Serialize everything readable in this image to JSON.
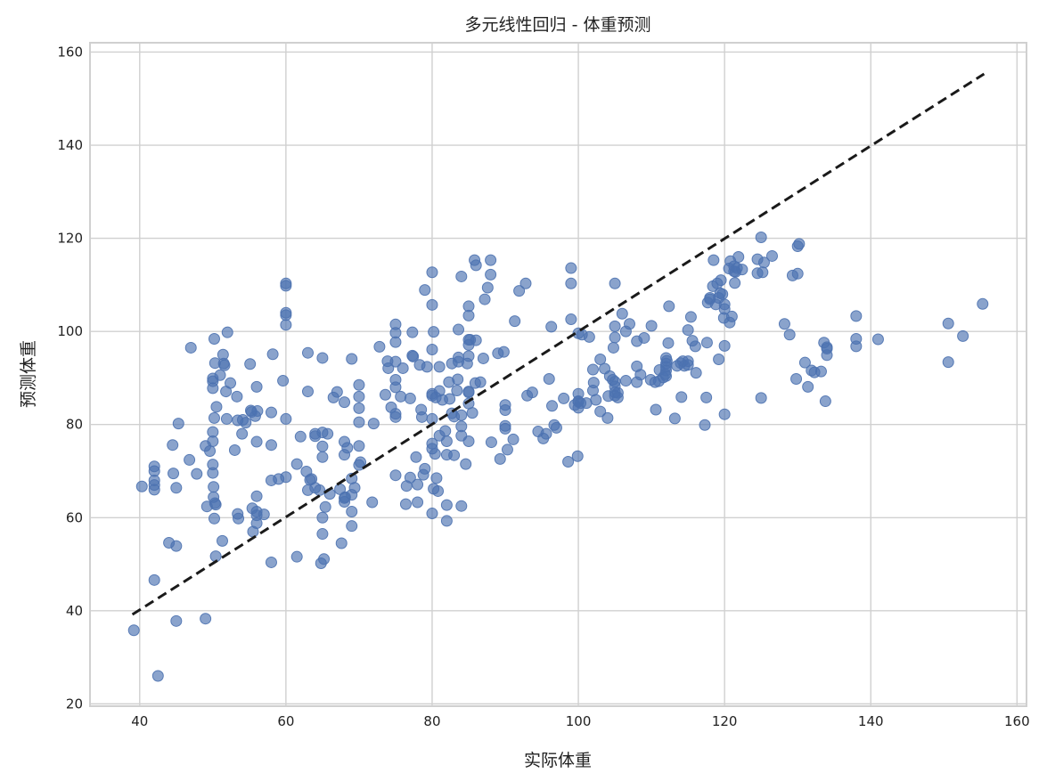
{
  "chart_data": {
    "type": "scatter",
    "title": "多元线性回归 - 体重预测",
    "xlabel": "实际体重",
    "ylabel": "预测体重",
    "xlim": [
      33.2,
      161.3
    ],
    "ylim": [
      19.5,
      162
    ],
    "xticks": [
      40,
      60,
      80,
      100,
      120,
      140,
      160
    ],
    "yticks": [
      20,
      40,
      60,
      80,
      100,
      120,
      140,
      160
    ],
    "grid": true,
    "reference_line": {
      "style": "dashed",
      "color": "#1a1a1a",
      "x": [
        39,
        155.5
      ],
      "y": [
        39.2,
        155.3
      ]
    },
    "point_color": "#4c72b0",
    "points": [
      [
        39.2,
        35.8
      ],
      [
        40.3,
        66.7
      ],
      [
        42,
        46.6
      ],
      [
        42,
        66
      ],
      [
        42,
        67
      ],
      [
        42,
        68
      ],
      [
        42,
        70
      ],
      [
        42,
        71
      ],
      [
        42.5,
        26
      ],
      [
        44,
        54.6
      ],
      [
        44.5,
        75.6
      ],
      [
        44.6,
        69.5
      ],
      [
        45,
        53.9
      ],
      [
        45,
        66.4
      ],
      [
        45,
        37.8
      ],
      [
        45.3,
        80.2
      ],
      [
        46.8,
        72.4
      ],
      [
        47,
        96.5
      ],
      [
        47.8,
        69.4
      ],
      [
        49,
        38.3
      ],
      [
        49,
        75.4
      ],
      [
        49.2,
        62.4
      ],
      [
        49.6,
        74.3
      ],
      [
        50,
        78.4
      ],
      [
        50,
        87.8
      ],
      [
        50,
        89.3
      ],
      [
        50,
        89.9
      ],
      [
        50,
        76.4
      ],
      [
        50.2,
        98.4
      ],
      [
        50,
        71.4
      ],
      [
        50,
        69.6
      ],
      [
        50.1,
        66.6
      ],
      [
        50.1,
        64.4
      ],
      [
        50.3,
        63.1
      ],
      [
        50.2,
        59.8
      ],
      [
        50.4,
        62.8
      ],
      [
        50.4,
        51.7
      ],
      [
        50.2,
        81.4
      ],
      [
        50.3,
        93.2
      ],
      [
        50.5,
        83.8
      ],
      [
        51,
        90.6
      ],
      [
        51.3,
        55
      ],
      [
        51.4,
        95
      ],
      [
        51.5,
        93.1
      ],
      [
        51.6,
        92.7
      ],
      [
        51.8,
        87.1
      ],
      [
        51.9,
        81.2
      ],
      [
        52,
        99.8
      ],
      [
        52.4,
        88.9
      ],
      [
        53,
        74.5
      ],
      [
        53.3,
        86
      ],
      [
        53.4,
        80.9
      ],
      [
        53.4,
        60.8
      ],
      [
        53.5,
        59.8
      ],
      [
        54,
        78
      ],
      [
        54.1,
        81
      ],
      [
        54.5,
        80.4
      ],
      [
        55.1,
        93
      ],
      [
        55.2,
        83
      ],
      [
        55.3,
        82.7
      ],
      [
        55.4,
        62
      ],
      [
        55.5,
        57
      ],
      [
        55.8,
        81.8
      ],
      [
        56,
        88.1
      ],
      [
        56,
        76.3
      ],
      [
        56,
        61.3
      ],
      [
        56,
        60.5
      ],
      [
        56,
        58.8
      ],
      [
        56,
        64.6
      ],
      [
        56.1,
        82.9
      ],
      [
        57,
        60.7
      ],
      [
        58,
        82.6
      ],
      [
        58,
        75.6
      ],
      [
        58,
        68
      ],
      [
        58,
        50.4
      ],
      [
        58.2,
        95.1
      ],
      [
        59,
        68.3
      ],
      [
        59.6,
        89.4
      ],
      [
        60,
        110.3
      ],
      [
        60,
        109.8
      ],
      [
        60,
        104
      ],
      [
        60,
        103.5
      ],
      [
        60,
        101.4
      ],
      [
        60,
        81.2
      ],
      [
        60,
        68.7
      ],
      [
        61.5,
        51.6
      ],
      [
        62,
        77.4
      ],
      [
        61.5,
        71.5
      ],
      [
        62.8,
        69.9
      ],
      [
        63,
        95.4
      ],
      [
        63,
        87.1
      ],
      [
        63,
        65.9
      ],
      [
        63.3,
        68.1
      ],
      [
        63.5,
        68.3
      ],
      [
        64,
        78
      ],
      [
        64,
        66.4
      ],
      [
        64,
        77.5
      ],
      [
        64.6,
        65.9
      ],
      [
        64.8,
        50.2
      ],
      [
        65,
        94.3
      ],
      [
        65,
        78.3
      ],
      [
        65,
        75.3
      ],
      [
        65,
        73
      ],
      [
        65,
        60
      ],
      [
        65,
        56.5
      ],
      [
        65.2,
        51.1
      ],
      [
        65.4,
        62.3
      ],
      [
        65.7,
        78
      ],
      [
        66,
        65.1
      ],
      [
        66.5,
        85.8
      ],
      [
        67,
        87
      ],
      [
        67.4,
        66.1
      ],
      [
        67.6,
        54.5
      ],
      [
        68,
        84.8
      ],
      [
        68,
        76.3
      ],
      [
        68,
        73.5
      ],
      [
        68,
        64.2
      ],
      [
        68,
        63.4
      ],
      [
        68.1,
        64.4
      ],
      [
        68.4,
        75
      ],
      [
        69,
        94.1
      ],
      [
        69,
        68.4
      ],
      [
        69,
        64.9
      ],
      [
        69,
        61.3
      ],
      [
        69,
        58.2
      ],
      [
        69.4,
        66.4
      ],
      [
        70,
        88.5
      ],
      [
        70,
        86
      ],
      [
        70,
        83.5
      ],
      [
        70,
        80.5
      ],
      [
        70,
        75.4
      ],
      [
        70,
        71.3
      ],
      [
        70.2,
        71.9
      ],
      [
        71.8,
        63.3
      ],
      [
        72,
        80.2
      ],
      [
        72.8,
        96.7
      ],
      [
        73.6,
        86.4
      ],
      [
        73.9,
        93.6
      ],
      [
        74,
        92.1
      ],
      [
        74.4,
        83.7
      ],
      [
        75,
        101.5
      ],
      [
        75,
        99.7
      ],
      [
        75,
        97.7
      ],
      [
        75,
        93.5
      ],
      [
        75,
        89.6
      ],
      [
        75,
        88
      ],
      [
        75,
        82.3
      ],
      [
        75,
        81.6
      ],
      [
        75,
        69.1
      ],
      [
        75.7,
        86
      ],
      [
        76,
        92.1
      ],
      [
        76.4,
        62.9
      ],
      [
        76.5,
        66.8
      ],
      [
        77,
        85.6
      ],
      [
        77,
        68.6
      ],
      [
        77.3,
        94.8
      ],
      [
        77.3,
        99.8
      ],
      [
        77.4,
        94.6
      ],
      [
        77.8,
        73
      ],
      [
        78,
        63.3
      ],
      [
        78,
        67.1
      ],
      [
        78.3,
        92.8
      ],
      [
        78.5,
        83.2
      ],
      [
        78.6,
        81.6
      ],
      [
        78.8,
        69.2
      ],
      [
        79,
        70.5
      ],
      [
        79,
        108.9
      ],
      [
        79.3,
        92.4
      ],
      [
        80,
        112.7
      ],
      [
        80,
        105.7
      ],
      [
        80,
        96.1
      ],
      [
        80,
        86.6
      ],
      [
        80,
        86.2
      ],
      [
        80,
        81.2
      ],
      [
        80,
        75.9
      ],
      [
        80,
        74.8
      ],
      [
        80.2,
        66.2
      ],
      [
        80,
        60.9
      ],
      [
        80.2,
        99.9
      ],
      [
        80.4,
        73.7
      ],
      [
        80.5,
        85.8
      ],
      [
        80.6,
        68.5
      ],
      [
        80.8,
        65.7
      ],
      [
        81,
        92.4
      ],
      [
        81,
        87.2
      ],
      [
        81,
        77.6
      ],
      [
        81.4,
        85.3
      ],
      [
        81.8,
        78.6
      ],
      [
        82,
        62.7
      ],
      [
        82,
        59.3
      ],
      [
        82,
        73.5
      ],
      [
        82,
        76.4
      ],
      [
        82.3,
        89.1
      ],
      [
        82.4,
        85.5
      ],
      [
        82.7,
        93.1
      ],
      [
        82.7,
        82.4
      ],
      [
        83,
        73.4
      ],
      [
        83,
        81.7
      ],
      [
        83.4,
        87.3
      ],
      [
        83.5,
        89.7
      ],
      [
        83.6,
        100.4
      ],
      [
        83.6,
        94.4
      ],
      [
        83.6,
        93.5
      ],
      [
        84,
        111.8
      ],
      [
        84,
        82
      ],
      [
        84,
        79.6
      ],
      [
        84,
        62.5
      ],
      [
        84,
        77.6
      ],
      [
        84.6,
        71.5
      ],
      [
        84.8,
        93.1
      ],
      [
        85,
        105.4
      ],
      [
        85,
        103.4
      ],
      [
        85,
        98.2
      ],
      [
        85,
        97.1
      ],
      [
        85,
        94.7
      ],
      [
        85,
        86.9
      ],
      [
        85,
        87.1
      ],
      [
        85,
        84.5
      ],
      [
        85,
        76.4
      ],
      [
        85.2,
        98.2
      ],
      [
        85.5,
        82.5
      ],
      [
        85.8,
        115.3
      ],
      [
        85.9,
        88.9
      ],
      [
        86,
        114.2
      ],
      [
        86,
        98.1
      ],
      [
        86.6,
        89.1
      ],
      [
        87,
        94.2
      ],
      [
        87.2,
        106.9
      ],
      [
        87.6,
        109.4
      ],
      [
        88,
        115.3
      ],
      [
        88,
        112.2
      ],
      [
        88.1,
        76.2
      ],
      [
        89,
        95.3
      ],
      [
        89.3,
        72.6
      ],
      [
        89.8,
        95.6
      ],
      [
        90,
        84.2
      ],
      [
        90,
        83.1
      ],
      [
        90,
        79.7
      ],
      [
        90,
        79.1
      ],
      [
        90.3,
        74.6
      ],
      [
        91.1,
        76.8
      ],
      [
        91.3,
        102.2
      ],
      [
        91.9,
        108.7
      ],
      [
        92.8,
        110.3
      ],
      [
        93,
        86.2
      ],
      [
        93.7,
        86.9
      ],
      [
        94.5,
        78.5
      ],
      [
        95.2,
        77
      ],
      [
        95.6,
        78
      ],
      [
        96,
        89.8
      ],
      [
        96.3,
        101
      ],
      [
        96.4,
        84
      ],
      [
        96.7,
        79.9
      ],
      [
        97,
        79.3
      ],
      [
        98,
        85.6
      ],
      [
        98.6,
        72
      ],
      [
        99,
        113.6
      ],
      [
        99,
        110.3
      ],
      [
        99,
        102.6
      ],
      [
        99.5,
        84.2
      ],
      [
        99.9,
        73.2
      ],
      [
        100,
        86.6
      ],
      [
        100,
        85
      ],
      [
        100,
        84.9
      ],
      [
        100,
        83.6
      ],
      [
        100,
        99.6
      ],
      [
        100.3,
        84.6
      ],
      [
        100.5,
        99.3
      ],
      [
        101.1,
        84.6
      ],
      [
        101.5,
        98.8
      ],
      [
        102,
        91.8
      ],
      [
        102,
        87.3
      ],
      [
        102.1,
        89
      ],
      [
        102.4,
        85.3
      ],
      [
        103,
        94
      ],
      [
        103,
        82.8
      ],
      [
        103.6,
        92
      ],
      [
        104,
        81.4
      ],
      [
        104.1,
        86.1
      ],
      [
        104.3,
        90.4
      ],
      [
        104.7,
        89.6
      ],
      [
        104.8,
        96.5
      ],
      [
        105,
        110.3
      ],
      [
        105,
        101.1
      ],
      [
        105,
        98.7
      ],
      [
        105,
        89.2
      ],
      [
        105,
        88.2
      ],
      [
        105,
        86.9
      ],
      [
        105,
        86.2
      ],
      [
        105.4,
        86.8
      ],
      [
        105.4,
        85.8
      ],
      [
        106,
        103.8
      ],
      [
        106.5,
        100
      ],
      [
        106.5,
        89.4
      ],
      [
        107,
        101.6
      ],
      [
        108,
        92.5
      ],
      [
        108,
        89.1
      ],
      [
        108,
        97.9
      ],
      [
        108.5,
        90.7
      ],
      [
        109,
        98.6
      ],
      [
        109.9,
        89.6
      ],
      [
        110,
        101.2
      ],
      [
        110.5,
        89.1
      ],
      [
        110.6,
        83.2
      ],
      [
        111,
        89.3
      ],
      [
        111.1,
        91.7
      ],
      [
        111.6,
        90.1
      ],
      [
        111.9,
        90.8
      ],
      [
        112,
        94.3
      ],
      [
        112,
        93.1
      ],
      [
        112,
        92.4
      ],
      [
        112,
        91.6
      ],
      [
        112,
        90.4
      ],
      [
        112.1,
        93.7
      ],
      [
        112.3,
        97.5
      ],
      [
        112.4,
        105.4
      ],
      [
        113.2,
        81.3
      ],
      [
        113.5,
        92.6
      ],
      [
        114,
        93.2
      ],
      [
        114.1,
        85.9
      ],
      [
        114.3,
        93.6
      ],
      [
        114.5,
        92.6
      ],
      [
        115,
        93.6
      ],
      [
        115,
        100.3
      ],
      [
        115,
        92.8
      ],
      [
        115.4,
        103.1
      ],
      [
        115.6,
        98
      ],
      [
        116,
        96.8
      ],
      [
        116.1,
        91.1
      ],
      [
        117.3,
        79.9
      ],
      [
        117.5,
        85.8
      ],
      [
        117.6,
        97.6
      ],
      [
        117.7,
        106.2
      ],
      [
        118,
        106.9
      ],
      [
        118,
        107.2
      ],
      [
        118.4,
        109.7
      ],
      [
        118.5,
        115.3
      ],
      [
        118.8,
        105.8
      ],
      [
        119,
        110.3
      ],
      [
        119.2,
        94
      ],
      [
        119.2,
        107.2
      ],
      [
        119.4,
        108.2
      ],
      [
        119.5,
        111
      ],
      [
        119.7,
        108
      ],
      [
        119.9,
        102.9
      ],
      [
        120,
        104.8
      ],
      [
        120,
        82.2
      ],
      [
        120,
        96.9
      ],
      [
        120,
        105.8
      ],
      [
        120.6,
        113.5
      ],
      [
        120.7,
        101.9
      ],
      [
        120.8,
        115.1
      ],
      [
        121,
        103.2
      ],
      [
        121.3,
        114
      ],
      [
        121.3,
        112.9
      ],
      [
        121.4,
        110.4
      ],
      [
        121.5,
        112.8
      ],
      [
        121.7,
        113.6
      ],
      [
        121.9,
        116
      ],
      [
        122.4,
        113.3
      ],
      [
        124.5,
        115.5
      ],
      [
        124.5,
        112.5
      ],
      [
        125,
        120.2
      ],
      [
        125,
        85.7
      ],
      [
        125.2,
        112.7
      ],
      [
        125.4,
        114.8
      ],
      [
        126.5,
        116.2
      ],
      [
        128.2,
        101.6
      ],
      [
        128.9,
        99.3
      ],
      [
        129.3,
        112
      ],
      [
        129.8,
        89.8
      ],
      [
        130,
        112.4
      ],
      [
        130,
        118.3
      ],
      [
        130.2,
        118.8
      ],
      [
        131,
        93.3
      ],
      [
        131.4,
        88.1
      ],
      [
        131.9,
        91.6
      ],
      [
        132.3,
        91.2
      ],
      [
        133.2,
        91.4
      ],
      [
        133.6,
        97.6
      ],
      [
        133.8,
        85
      ],
      [
        134,
        96.3
      ],
      [
        134,
        96.6
      ],
      [
        134,
        94.9
      ],
      [
        138,
        103.3
      ],
      [
        138,
        98.4
      ],
      [
        138,
        96.8
      ],
      [
        141,
        98.3
      ],
      [
        150.6,
        101.7
      ],
      [
        150.6,
        93.4
      ],
      [
        152.6,
        99
      ],
      [
        155.3,
        105.9
      ]
    ]
  }
}
